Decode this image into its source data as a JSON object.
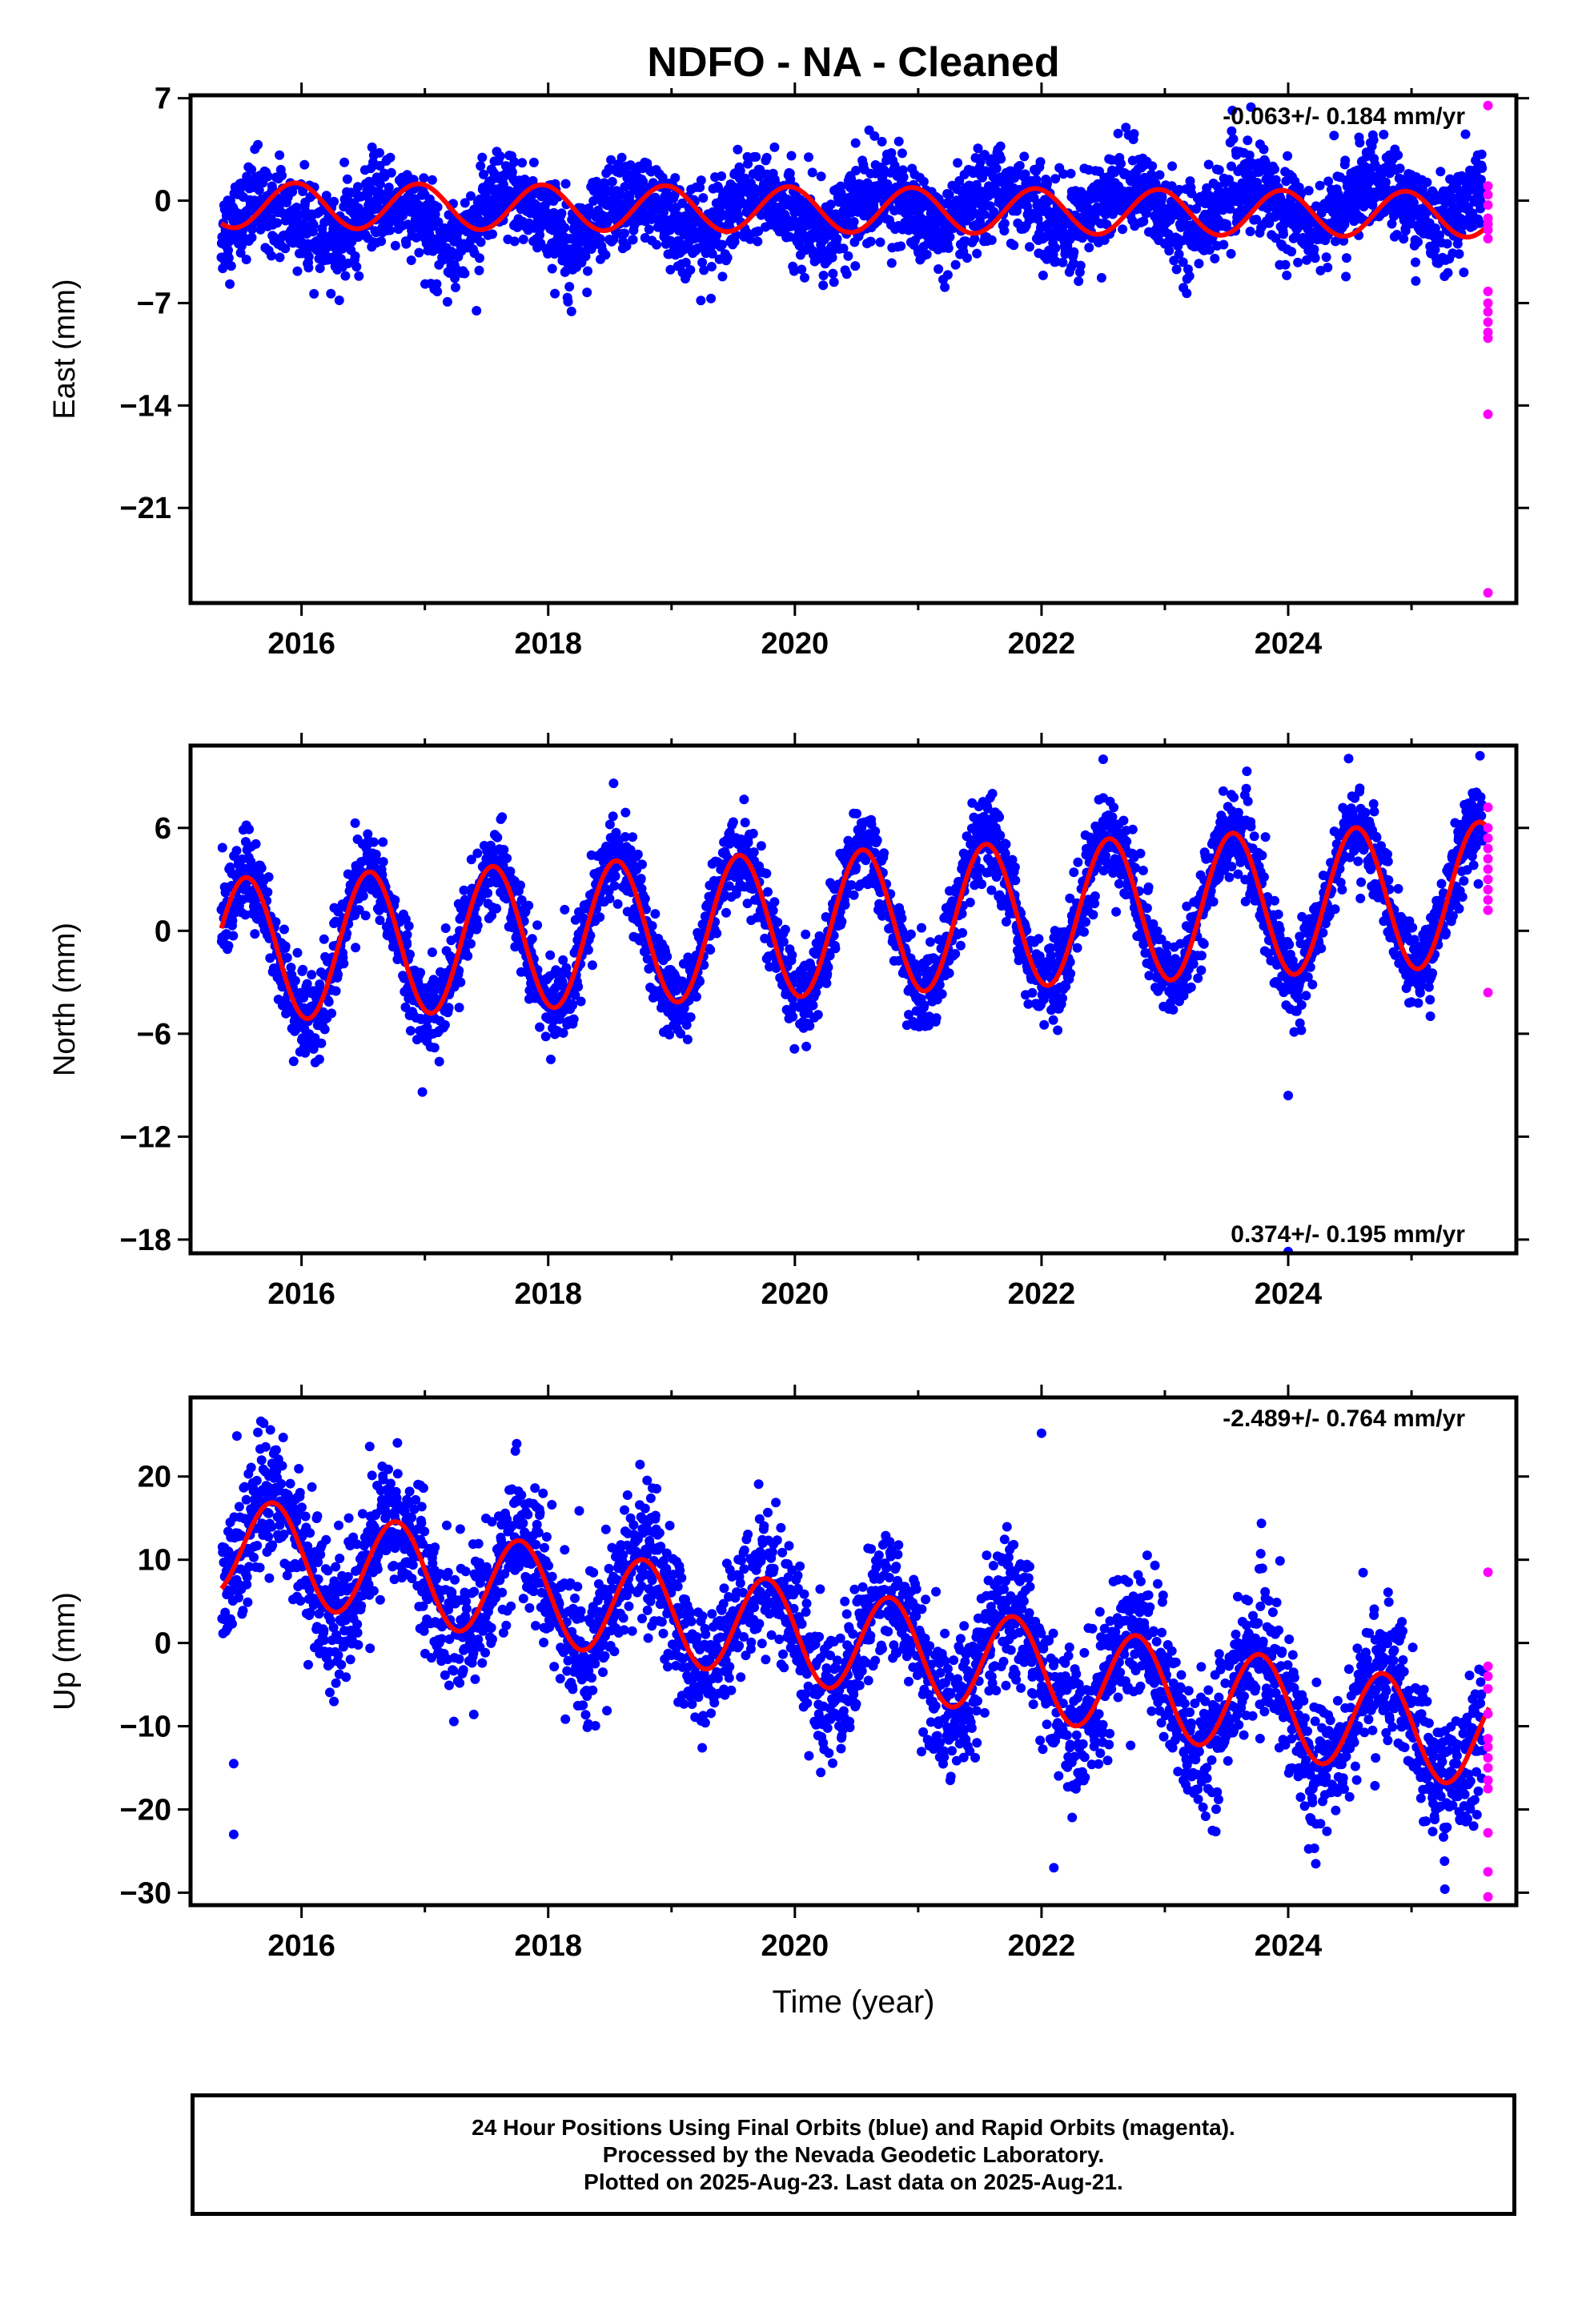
{
  "chart_data": [
    {
      "type": "scatter",
      "title": "NDFO  - NA - Cleaned",
      "ylabel": "East (mm)",
      "xlabel": "",
      "xlim": [
        2015.1,
        2025.85
      ],
      "ylim": [
        -27.5,
        7.2
      ],
      "yticks": [
        7,
        0,
        -7,
        -14,
        -21
      ],
      "xticks": [
        2016,
        2018,
        2020,
        2022,
        2024
      ],
      "rate_label": "-0.063+/- 0.184 mm/yr",
      "rate_label_position": "top-right",
      "grid": false,
      "series": [
        {
          "role": "final_orbits",
          "color": "#0000ff",
          "start": 2015.35,
          "end": 2025.58,
          "trend_mm": [
            -1.5,
            -0.1
          ],
          "amplitude_mm": 1.4,
          "peak_phase": 0.7,
          "noise_mm": 1.5
        },
        {
          "role": "rapid_orbits",
          "color": "#ff00ff",
          "x": 2025.62,
          "values": [
            6.5,
            1.0,
            0.4,
            -0.3,
            -1.2,
            -1.6,
            -2.0,
            -2.6,
            -6.2,
            -7.0,
            -7.6,
            -8.3,
            -9.0,
            -9.4,
            -14.6,
            -26.8
          ]
        },
        {
          "role": "seasonal_fit",
          "color": "#ff0000",
          "trend_mm": [
            -0.3,
            -0.95
          ],
          "amplitude_mm": 1.55,
          "peak_phase": 0.95
        }
      ]
    },
    {
      "type": "scatter",
      "title": "",
      "ylabel": "North (mm)",
      "xlabel": "",
      "xlim": [
        2015.1,
        2025.85
      ],
      "ylim": [
        -18.8,
        10.8
      ],
      "yticks": [
        6,
        0,
        -6,
        -12,
        -18
      ],
      "xticks": [
        2016,
        2018,
        2020,
        2022,
        2024
      ],
      "rate_label": "0.374+/- 0.195 mm/yr",
      "rate_label_position": "bottom-right",
      "grid": false,
      "series": [
        {
          "role": "final_orbits",
          "color": "#0000ff",
          "start": 2015.35,
          "end": 2025.58,
          "trend_mm": [
            -1.2,
            2.2
          ],
          "amplitude_mm": 4.2,
          "peak_phase": 0.55,
          "noise_mm": 1.2,
          "outliers": [
            [
              2016.98,
              -9.4
            ],
            [
              2024.0,
              -9.6
            ],
            [
              2024.0,
              -18.7
            ],
            [
              2022.5,
              10.0
            ],
            [
              2018.53,
              8.6
            ]
          ]
        },
        {
          "role": "rapid_orbits",
          "color": "#ff00ff",
          "x": 2025.62,
          "values": [
            7.2,
            6.0,
            5.4,
            4.8,
            4.2,
            3.6,
            3.0,
            2.4,
            1.8,
            1.2,
            -3.6
          ]
        },
        {
          "role": "seasonal_fit",
          "color": "#ff0000",
          "trend_mm": [
            -1.15,
            2.15
          ],
          "amplitude_mm": 4.2,
          "peak_phase": 0.55
        }
      ]
    },
    {
      "type": "scatter",
      "title": "",
      "ylabel": "Up (mm)",
      "xlabel": "Time (year)",
      "xlim": [
        2015.1,
        2025.85
      ],
      "ylim": [
        -31.5,
        29.5
      ],
      "yticks": [
        20,
        10,
        0,
        -10,
        -20,
        -30
      ],
      "xticks": [
        2016,
        2018,
        2020,
        2022,
        2024
      ],
      "rate_label": "-2.489+/- 0.764 mm/yr",
      "rate_label_position": "top-right",
      "grid": false,
      "series": [
        {
          "role": "final_orbits",
          "color": "#0000ff",
          "start": 2015.35,
          "end": 2025.58,
          "trend_mm": [
            11.8,
            -11.5
          ],
          "amplitude_mm": 6.5,
          "peak_phase": 0.77,
          "noise_mm": 4.0,
          "outliers": [
            [
              2015.45,
              -23.0
            ],
            [
              2022.0,
              25.2
            ],
            [
              2015.45,
              -14.5
            ],
            [
              2022.1,
              -27.0
            ]
          ]
        },
        {
          "role": "rapid_orbits",
          "color": "#ff00ff",
          "x": 2025.62,
          "values": [
            8.5,
            -2.8,
            -4.0,
            -5.5,
            -8.5,
            -11.5,
            -12.5,
            -13.8,
            -15.0,
            -16.5,
            -17.5,
            -22.8,
            -27.5,
            -30.5
          ]
        },
        {
          "role": "seasonal_fit",
          "color": "#ff0000",
          "trend_mm": [
            11.8,
            -11.5
          ],
          "amplitude_mm": 6.0,
          "peak_phase": 0.77
        }
      ]
    }
  ],
  "footer": {
    "line1": "24 Hour Positions Using Final Orbits (blue) and Rapid Orbits (magenta).",
    "line2": "Processed by the Nevada Geodetic Laboratory.",
    "line3": "Plotted on 2025-Aug-23. Last data on 2025-Aug-21."
  }
}
